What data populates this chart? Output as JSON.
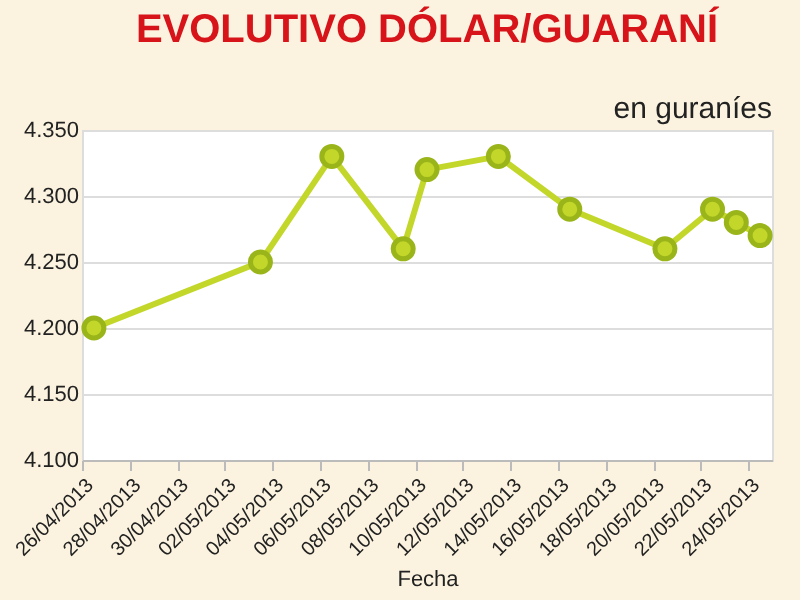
{
  "chart_data": {
    "type": "line",
    "title": "EVOLUTIVO DÓLAR/GUARANÍ",
    "subtitle": "en guraníes",
    "xlabel": "Fecha",
    "x": [
      "2013-04-26T12:00",
      "2013-05-03T12:00",
      "2013-05-06T12:00",
      "2013-05-09T12:00",
      "2013-05-10T12:00",
      "2013-05-13T12:00",
      "2013-05-16T12:00",
      "2013-05-20T12:00",
      "2013-05-22T12:00",
      "2013-05-23T12:00",
      "2013-05-24T12:00"
    ],
    "series": [
      {
        "color": "#c3d62a",
        "values": [
          4200,
          4250,
          4330,
          4260,
          4320,
          4330,
          4290,
          4260,
          4290,
          4280,
          4270
        ]
      }
    ],
    "xlim": [
      "2013-04-26",
      "2013-05-25"
    ],
    "xticks": [
      {
        "value": "2013-04-26",
        "label": "26/04/2013"
      },
      {
        "value": "2013-04-28",
        "label": "28/04/2013"
      },
      {
        "value": "2013-04-30",
        "label": "30/04/2013"
      },
      {
        "value": "2013-05-02",
        "label": "02/05/2013"
      },
      {
        "value": "2013-05-04",
        "label": "04/05/2013"
      },
      {
        "value": "2013-05-06",
        "label": "06/05/2013"
      },
      {
        "value": "2013-05-08",
        "label": "08/05/2013"
      },
      {
        "value": "2013-05-10",
        "label": "10/05/2013"
      },
      {
        "value": "2013-05-12",
        "label": "12/05/2013"
      },
      {
        "value": "2013-05-14",
        "label": "14/05/2013"
      },
      {
        "value": "2013-05-16",
        "label": "16/05/2013"
      },
      {
        "value": "2013-05-18",
        "label": "18/05/2013"
      },
      {
        "value": "2013-05-20",
        "label": "20/05/2013"
      },
      {
        "value": "2013-05-22",
        "label": "22/05/2013"
      },
      {
        "value": "2013-05-24",
        "label": "24/05/2013"
      }
    ],
    "ylim": [
      4100,
      4350
    ],
    "yticks": [
      {
        "value": 4100,
        "label": "4.100"
      },
      {
        "value": 4150,
        "label": "4.150"
      },
      {
        "value": 4200,
        "label": "4.200"
      },
      {
        "value": 4250,
        "label": "4.250"
      },
      {
        "value": 4300,
        "label": "4.300"
      },
      {
        "value": 4350,
        "label": "4.350"
      }
    ],
    "grid": "y",
    "marker": "circle",
    "line_style": "solid"
  }
}
